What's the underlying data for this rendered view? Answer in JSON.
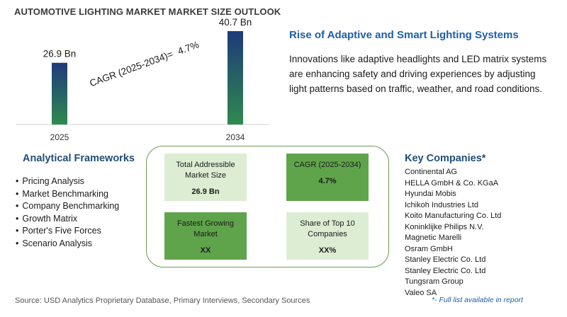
{
  "title": "AUTOMOTIVE LIGHTING MARKET MARKET SIZE OUTLOOK",
  "chart_data": {
    "type": "bar",
    "categories": [
      "2025",
      "2034"
    ],
    "values": [
      26.9,
      40.7
    ],
    "value_labels": [
      "26.9 Bn",
      "40.7 Bn"
    ],
    "unit": "Bn",
    "ylim": [
      0,
      45
    ],
    "grid": false,
    "bar_gradient": [
      "#1f3a7a",
      "#2f8a4e"
    ],
    "annotation": {
      "label": "CAGR (2025-2034)=",
      "value": "4.7%"
    }
  },
  "rise": {
    "heading": "Rise of Adaptive and Smart Lighting Systems",
    "text": "Innovations like adaptive headlights and LED matrix systems are enhancing safety and driving experiences by adjusting light patterns based on traffic, weather, and road conditions."
  },
  "frameworks": {
    "heading": "Analytical Frameworks",
    "items": [
      "Pricing Analysis",
      "Market Benchmarking",
      "Company Benchmarking",
      "Growth Matrix",
      "Porter's Five Forces",
      "Scenario Analysis"
    ]
  },
  "cards": {
    "tam": {
      "label": "Total Addressible Market Size",
      "value": "26.9 Bn"
    },
    "cagr": {
      "label": "CAGR (2025-2034)",
      "value": "4.7%"
    },
    "fgm": {
      "label": "Fastest Growing Market",
      "value": "XX"
    },
    "share": {
      "label": "Share of Top 10 Companies",
      "value": "XX%"
    }
  },
  "companies": {
    "heading": "Key Companies*",
    "items": [
      "Continental AG",
      "HELLA GmbH & Co. KGaA",
      "Hyundai Mobis",
      "Ichikoh Industries Ltd",
      "Koito Manufacturing Co. Ltd",
      "Koninklijke Philips N.V.",
      "Magnetic Marelli",
      "Osram GmbH",
      "Stanley Electric Co. Ltd",
      "Stanley Electric Co. Ltd",
      "Tungsram Group",
      "Valeo SA"
    ],
    "note": "*- Full list available in report"
  },
  "source": "Source: USD Analytics Proprietary Database, Primary Interviews, Secondary Sources",
  "colors": {
    "heading_blue": "#1f5fa8",
    "dark_blue": "#1f4e79",
    "card_light": "#dcedd3",
    "card_dark": "#5fa44a",
    "box_border": "#6b9a52"
  }
}
